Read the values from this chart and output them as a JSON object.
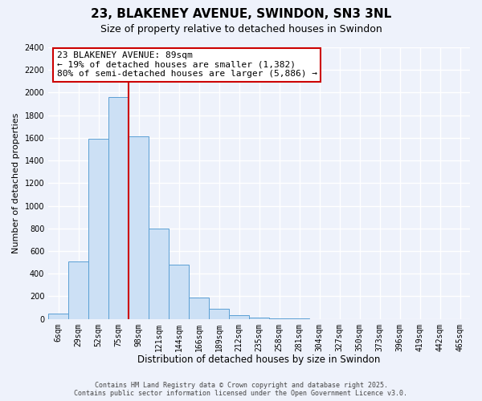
{
  "title": "23, BLAKENEY AVENUE, SWINDON, SN3 3NL",
  "subtitle": "Size of property relative to detached houses in Swindon",
  "xlabel": "Distribution of detached houses by size in Swindon",
  "ylabel": "Number of detached properties",
  "bin_labels": [
    "6sqm",
    "29sqm",
    "52sqm",
    "75sqm",
    "98sqm",
    "121sqm",
    "144sqm",
    "166sqm",
    "189sqm",
    "212sqm",
    "235sqm",
    "258sqm",
    "281sqm",
    "304sqm",
    "327sqm",
    "350sqm",
    "373sqm",
    "396sqm",
    "419sqm",
    "442sqm",
    "465sqm"
  ],
  "bar_heights": [
    50,
    510,
    1590,
    1960,
    1610,
    800,
    480,
    190,
    90,
    35,
    10,
    5,
    2,
    0,
    0,
    0,
    0,
    0,
    0,
    1,
    0
  ],
  "bar_color": "#cce0f5",
  "bar_edge_color": "#5a9fd4",
  "vline_color": "#cc0000",
  "vline_x_index": 3,
  "ylim": [
    0,
    2400
  ],
  "yticks": [
    0,
    200,
    400,
    600,
    800,
    1000,
    1200,
    1400,
    1600,
    1800,
    2000,
    2200,
    2400
  ],
  "annotation_title": "23 BLAKENEY AVENUE: 89sqm",
  "annotation_line1": "← 19% of detached houses are smaller (1,382)",
  "annotation_line2": "80% of semi-detached houses are larger (5,886) →",
  "footer_line1": "Contains HM Land Registry data © Crown copyright and database right 2025.",
  "footer_line2": "Contains public sector information licensed under the Open Government Licence v3.0.",
  "bg_color": "#eef2fb",
  "grid_color": "#ffffff",
  "title_fontsize": 11,
  "subtitle_fontsize": 9,
  "tick_fontsize": 7,
  "ylabel_fontsize": 8,
  "xlabel_fontsize": 8.5,
  "footer_fontsize": 6,
  "annotation_fontsize": 8
}
